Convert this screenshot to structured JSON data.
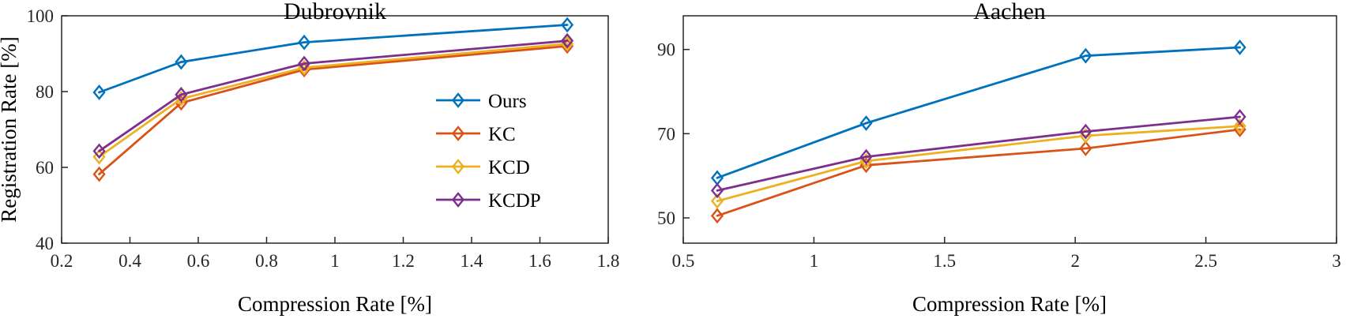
{
  "figure": {
    "background": "#ffffff",
    "axis_color": "#262626"
  },
  "chart_data": [
    {
      "type": "line",
      "title": "Dubrovnik",
      "xlabel": "Compression Rate [%]",
      "ylabel": "Registration Rate [%]",
      "xlim": [
        0.2,
        1.8
      ],
      "ylim": [
        40,
        100
      ],
      "xticks": [
        0.2,
        0.4,
        0.6,
        0.8,
        1,
        1.2,
        1.4,
        1.6,
        1.8
      ],
      "xtick_labels": [
        "0.2",
        "0.4",
        "0.6",
        "0.8",
        "1",
        "1.2",
        "1.4",
        "1.6",
        "1.8"
      ],
      "yticks": [
        40,
        60,
        80,
        100
      ],
      "ytick_labels": [
        "40",
        "60",
        "80",
        "100"
      ],
      "grid": false,
      "marker": "diamond",
      "x": [
        0.31,
        0.55,
        0.91,
        1.68
      ],
      "series": [
        {
          "name": "Ours",
          "color": "#0072BD",
          "values": [
            79.8,
            87.8,
            93.0,
            97.6
          ]
        },
        {
          "name": "KC",
          "color": "#D95319",
          "values": [
            58.2,
            77.0,
            85.8,
            92.0
          ]
        },
        {
          "name": "KCD",
          "color": "#EDB120",
          "values": [
            62.8,
            78.1,
            86.3,
            92.6
          ]
        },
        {
          "name": "KCDP",
          "color": "#7E2F8E",
          "values": [
            64.3,
            79.2,
            87.4,
            93.4
          ]
        }
      ],
      "legend": {
        "visible": true,
        "position": "inside-right",
        "entries": [
          "Ours",
          "KC",
          "KCD",
          "KCDP"
        ]
      }
    },
    {
      "type": "line",
      "title": "Aachen",
      "xlabel": "Compression Rate [%]",
      "ylabel": "",
      "xlim": [
        0.5,
        3
      ],
      "ylim": [
        44,
        98
      ],
      "xticks": [
        0.5,
        1,
        1.5,
        2,
        2.5,
        3
      ],
      "xtick_labels": [
        "0.5",
        "1",
        "1.5",
        "2",
        "2.5",
        "3"
      ],
      "yticks": [
        50,
        70,
        90
      ],
      "ytick_labels": [
        "50",
        "70",
        "90"
      ],
      "grid": false,
      "marker": "diamond",
      "x": [
        0.63,
        1.2,
        2.04,
        2.63
      ],
      "series": [
        {
          "name": "Ours",
          "color": "#0072BD",
          "values": [
            59.5,
            72.5,
            88.5,
            90.5
          ]
        },
        {
          "name": "KC",
          "color": "#D95319",
          "values": [
            50.5,
            62.5,
            66.5,
            71.0
          ]
        },
        {
          "name": "KCD",
          "color": "#EDB120",
          "values": [
            54.0,
            63.5,
            69.5,
            71.8
          ]
        },
        {
          "name": "KCDP",
          "color": "#7E2F8E",
          "values": [
            56.5,
            64.5,
            70.5,
            74.0
          ]
        }
      ],
      "legend": {
        "visible": false,
        "position": "none",
        "entries": []
      }
    }
  ]
}
